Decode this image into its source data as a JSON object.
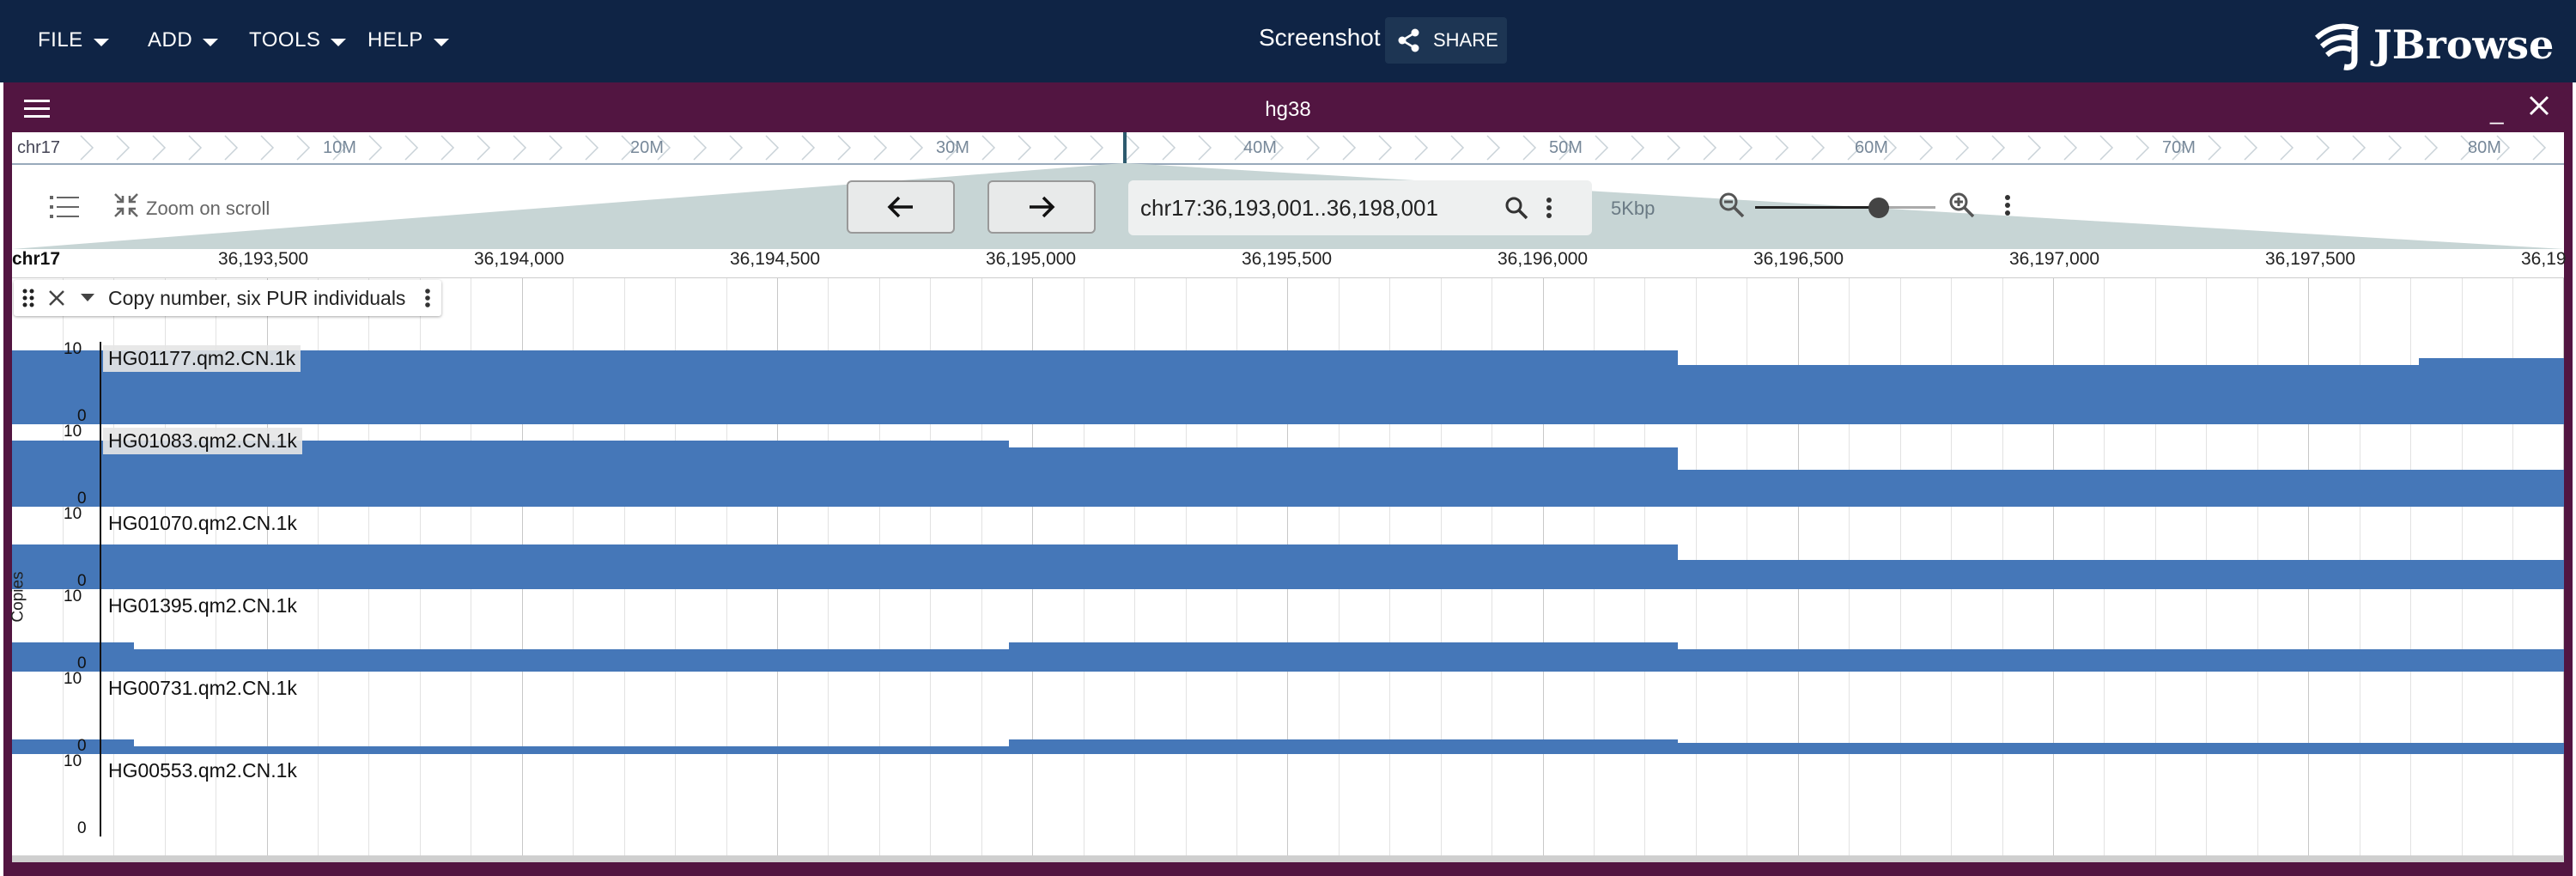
{
  "menu": {
    "file": "FILE",
    "add": "ADD",
    "tools": "TOOLS",
    "help": "HELP"
  },
  "header": {
    "session_title": "Screenshot",
    "share_label": "SHARE",
    "logo_text": "JBrowse"
  },
  "view": {
    "title": "hg38",
    "minimize": "_"
  },
  "overview": {
    "chr": "chr17",
    "ticks": [
      "10M",
      "20M",
      "30M",
      "40M",
      "50M",
      "60M",
      "70M",
      "80M"
    ]
  },
  "nav": {
    "zoom_on_scroll": "Zoom on scroll",
    "location": "chr17:36,193,001..36,198,001",
    "bp_width": "5Kbp"
  },
  "ruler": {
    "chr": "chr17",
    "ticks": [
      "36,193,500",
      "36,194,000",
      "36,194,500",
      "36,195,000",
      "36,195,500",
      "36,196,000",
      "36,196,500",
      "36,197,000",
      "36,197,500",
      "36,19"
    ]
  },
  "track": {
    "name": "Copy number, six PUR individuals",
    "axis_label": "Copies",
    "axis_max": "10",
    "axis_min": "0",
    "rows": [
      {
        "name": "HG01177.qm2.CN.1k"
      },
      {
        "name": "HG01083.qm2.CN.1k"
      },
      {
        "name": "HG01070.qm2.CN.1k"
      },
      {
        "name": "HG01395.qm2.CN.1k"
      },
      {
        "name": "HG00731.qm2.CN.1k"
      },
      {
        "name": "HG00553.qm2.CN.1k"
      }
    ]
  },
  "colors": {
    "topbar": "#0f2445",
    "view_header": "#521541",
    "bar": "#4577b8"
  }
}
